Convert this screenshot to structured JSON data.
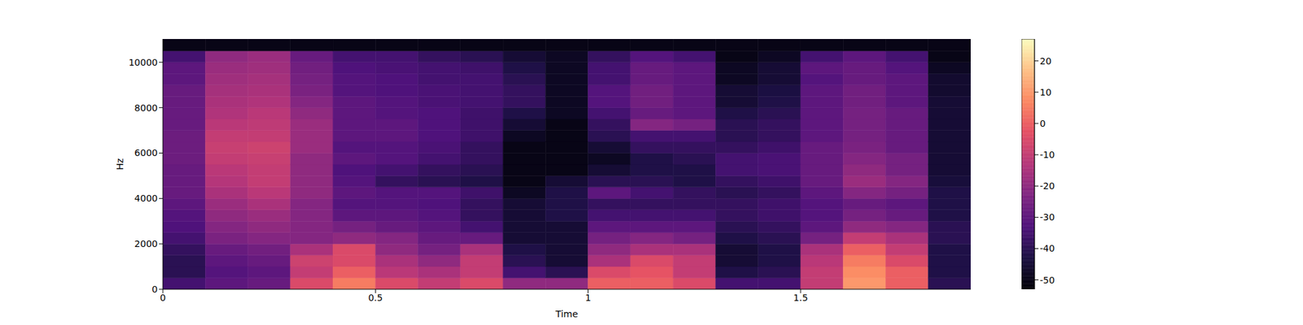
{
  "chart_data": {
    "type": "heatmap",
    "xlabel": "Time",
    "ylabel": "Hz",
    "xlim": [
      0,
      1.9
    ],
    "xticks": [
      0,
      0.5,
      1,
      1.5
    ],
    "ylim": [
      0,
      11025
    ],
    "yticks": [
      0,
      2000,
      4000,
      6000,
      8000,
      10000
    ],
    "time_edges": [
      0,
      0.1,
      0.2,
      0.3,
      0.4,
      0.5,
      0.6,
      0.7,
      0.8,
      0.9,
      1.0,
      1.1,
      1.2,
      1.3,
      1.4,
      1.5,
      1.6,
      1.7,
      1.8,
      1.9
    ],
    "freq_edges": [
      0,
      500,
      1000,
      1500,
      2000,
      2500,
      3000,
      3500,
      4000,
      4500,
      5000,
      5500,
      6000,
      6500,
      7000,
      7500,
      8000,
      8500,
      9000,
      9500,
      10000,
      10500,
      11025
    ],
    "cells": [
      [
        -35,
        -40,
        -40,
        -38,
        -35,
        -33,
        -32,
        -30,
        -28,
        -28,
        -28,
        -27,
        -27,
        -27,
        -28,
        -28,
        -28,
        -28,
        -30,
        -30,
        -35,
        -50
      ],
      [
        -30,
        -32,
        -30,
        -28,
        -24,
        -22,
        -20,
        -18,
        -15,
        -13,
        -12,
        -10,
        -9,
        -10,
        -12,
        -14,
        -15,
        -16,
        -17,
        -18,
        -20,
        -50
      ],
      [
        -28,
        -30,
        -28,
        -26,
        -22,
        -20,
        -18,
        -15,
        -12,
        -10,
        -10,
        -9,
        -8,
        -10,
        -11,
        -12,
        -14,
        -15,
        -16,
        -17,
        -18,
        -50
      ],
      [
        -5,
        -10,
        -8,
        -15,
        -22,
        -22,
        -22,
        -22,
        -20,
        -20,
        -20,
        -20,
        -18,
        -18,
        -18,
        -20,
        -22,
        -24,
        -25,
        -26,
        -28,
        -50
      ],
      [
        5,
        0,
        -5,
        -5,
        -20,
        -25,
        -30,
        -32,
        -30,
        -32,
        -33,
        -30,
        -32,
        -30,
        -30,
        -30,
        -30,
        -32,
        -32,
        -33,
        -35,
        -50
      ],
      [
        -5,
        -12,
        -15,
        -20,
        -22,
        -28,
        -30,
        -32,
        -32,
        -38,
        -35,
        -32,
        -32,
        -30,
        -30,
        -32,
        -32,
        -33,
        -33,
        -34,
        -35,
        -50
      ],
      [
        -10,
        -15,
        -20,
        -25,
        -28,
        -30,
        -32,
        -33,
        -32,
        -40,
        -38,
        -35,
        -34,
        -33,
        -33,
        -33,
        -34,
        -34,
        -35,
        -35,
        -38,
        -50
      ],
      [
        -5,
        -10,
        -10,
        -15,
        -28,
        -35,
        -38,
        -38,
        -36,
        -42,
        -40,
        -38,
        -38,
        -36,
        -36,
        -36,
        -35,
        -35,
        -35,
        -36,
        -40,
        -50
      ],
      [
        -20,
        -35,
        -40,
        -42,
        -45,
        -45,
        -45,
        -45,
        -48,
        -50,
        -50,
        -50,
        -50,
        -48,
        -45,
        -42,
        -38,
        -38,
        -40,
        -42,
        -45,
        -50
      ],
      [
        -20,
        -40,
        -45,
        -45,
        -45,
        -45,
        -42,
        -42,
        -42,
        -45,
        -50,
        -50,
        -50,
        -50,
        -50,
        -48,
        -48,
        -48,
        -48,
        -48,
        -48,
        -50
      ],
      [
        0,
        -5,
        -15,
        -20,
        -25,
        -30,
        -35,
        -38,
        -30,
        -40,
        -45,
        -48,
        -45,
        -40,
        -38,
        -35,
        -32,
        -32,
        -35,
        -35,
        -38,
        -50
      ],
      [
        0,
        -2,
        -5,
        -15,
        -22,
        -30,
        -35,
        -38,
        -35,
        -40,
        -42,
        -42,
        -38,
        -35,
        -22,
        -28,
        -26,
        -26,
        -28,
        -28,
        -32,
        -50
      ],
      [
        -5,
        -10,
        -10,
        -15,
        -25,
        -30,
        -35,
        -38,
        -38,
        -42,
        -42,
        -40,
        -38,
        -35,
        -25,
        -30,
        -30,
        -30,
        -30,
        -30,
        -35,
        -50
      ],
      [
        -35,
        -42,
        -45,
        -45,
        -42,
        -40,
        -38,
        -38,
        -40,
        -38,
        -35,
        -35,
        -38,
        -40,
        -40,
        -42,
        -45,
        -45,
        -48,
        -48,
        -50,
        -50
      ],
      [
        -35,
        -40,
        -42,
        -42,
        -40,
        -38,
        -36,
        -36,
        -38,
        -36,
        -34,
        -34,
        -36,
        -38,
        -38,
        -40,
        -42,
        -43,
        -45,
        -45,
        -48,
        -50
      ],
      [
        -10,
        -10,
        -12,
        -15,
        -25,
        -30,
        -32,
        -32,
        -30,
        -28,
        -28,
        -28,
        -28,
        -30,
        -30,
        -30,
        -30,
        -30,
        -32,
        -30,
        -35,
        -50
      ],
      [
        10,
        8,
        5,
        0,
        -10,
        -20,
        -25,
        -28,
        -22,
        -18,
        -20,
        -22,
        -24,
        -25,
        -25,
        -25,
        -26,
        -26,
        -28,
        -28,
        -30,
        -50
      ],
      [
        0,
        0,
        -5,
        -10,
        -15,
        -22,
        -28,
        -30,
        -25,
        -22,
        -25,
        -25,
        -28,
        -28,
        -28,
        -28,
        -30,
        -30,
        -30,
        -32,
        -35,
        -50
      ],
      [
        -40,
        -42,
        -42,
        -42,
        -40,
        -40,
        -42,
        -42,
        -42,
        -44,
        -45,
        -45,
        -45,
        -45,
        -45,
        -45,
        -45,
        -46,
        -46,
        -48,
        -50,
        -50
      ]
    ],
    "colorbar": {
      "range": [
        -53,
        27
      ],
      "ticks": [
        -50,
        -40,
        -30,
        -20,
        -10,
        0,
        10,
        20
      ]
    }
  }
}
